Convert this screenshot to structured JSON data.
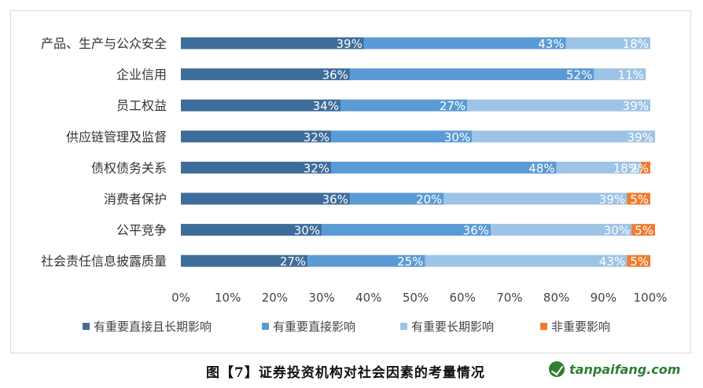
{
  "chart_data": {
    "type": "bar",
    "orientation": "horizontal",
    "stacked": true,
    "categories": [
      "产品、生产与公众安全",
      "企业信用",
      "员工权益",
      "供应链管理及监督",
      "债权债务关系",
      "消费者保护",
      "公平竞争",
      "社会责任信息披露质量"
    ],
    "series": [
      {
        "name": "有重要直接且长期影响",
        "color": "#3e6d9c",
        "values": [
          39,
          36,
          34,
          32,
          32,
          36,
          30,
          27
        ],
        "labels": [
          "39%",
          "36%",
          "34%",
          "32%",
          "32%",
          "36%",
          "30%",
          "27%"
        ]
      },
      {
        "name": "有重要直接影响",
        "color": "#5b9bd5",
        "values": [
          43,
          52,
          27,
          30,
          48,
          20,
          36,
          25
        ],
        "labels": [
          "43%",
          "52%",
          "27%",
          "30%",
          "48%",
          "20%",
          "36%",
          "25%"
        ]
      },
      {
        "name": "有重要长期影响",
        "color": "#9dc3e6",
        "values": [
          18,
          11,
          39,
          39,
          18,
          39,
          30,
          43
        ],
        "labels": [
          "18%",
          "11%",
          "39%",
          "39%",
          "18%",
          "39%",
          "30%",
          "43%"
        ]
      },
      {
        "name": "非重要影响",
        "color": "#ed7d31",
        "values": [
          0,
          0,
          0,
          0,
          2,
          5,
          5,
          5
        ],
        "labels": [
          "",
          "",
          "",
          "",
          "2%",
          "5%",
          "5%",
          "5%"
        ]
      }
    ],
    "x_ticks": [
      "0%",
      "10%",
      "20%",
      "30%",
      "40%",
      "50%",
      "60%",
      "70%",
      "80%",
      "90%",
      "100%"
    ],
    "xlim": [
      0,
      100
    ],
    "grid": false,
    "legend_position": "bottom"
  },
  "caption": "图【7】证券投资机构对社会因素的考量情况",
  "watermark": "tanpaifang.com"
}
